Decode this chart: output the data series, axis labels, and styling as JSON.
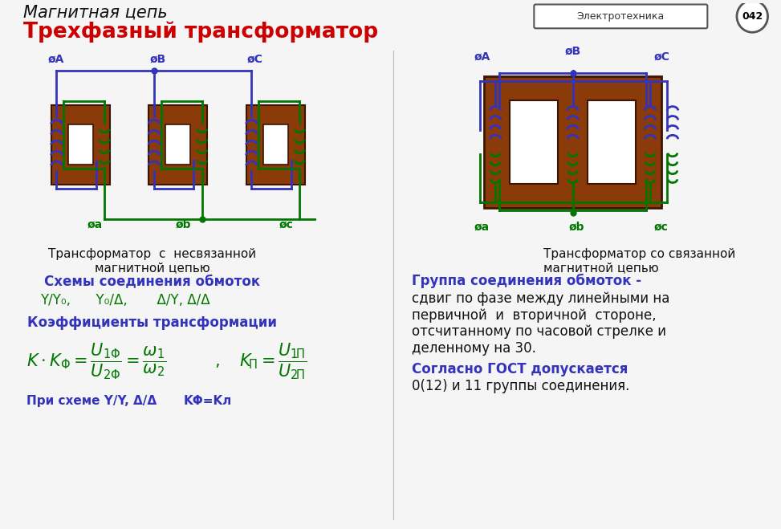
{
  "title_line1": "Магнитная цепь",
  "title_line2": "Трехфазный трансформатор",
  "bg_color": "#f5f5f5",
  "title1_color": "#111111",
  "title2_color": "#cc0000",
  "blue_color": "#3333bb",
  "green_color": "#007700",
  "dark_green": "#006600",
  "brown_color": "#8B3A0A",
  "text_black": "#111111",
  "label_left1": "Трансформатор  с  несвязанной",
  "label_left2": "магнитной цепью",
  "label_right1": "Трансформатор со связанной",
  "label_right2": "магнитной цепью",
  "schemes_title": "Схемы соединения обмоток",
  "schemes_text": "Y/Y₀,      Y₀/Δ,       Δ/Y, Δ/Δ",
  "coeff_title": "Коэффициенты трансформации",
  "group_title": "Группа соединения обмоток -",
  "group_text1": "сдвиг по фазе между линейными на",
  "group_text2": "первичной  и  вторичной  стороне,",
  "group_text3": "отсчитанному по часовой стрелке и",
  "group_text4": "деленному на 30.",
  "gost_title": "Согласно ГОСТ допускается",
  "gost_text": "0(12) и 11 группы соединения.",
  "badge_text": "Электротехника",
  "badge_num": "042",
  "phi_A": "øA",
  "phi_B": "øB",
  "phi_C": "øC",
  "phi_a": "øa",
  "phi_b": "øb",
  "phi_c": "øc",
  "scheme_note1": "При схеме Y/Y, Δ/Δ",
  "scheme_note2": "KΦ=Kл"
}
